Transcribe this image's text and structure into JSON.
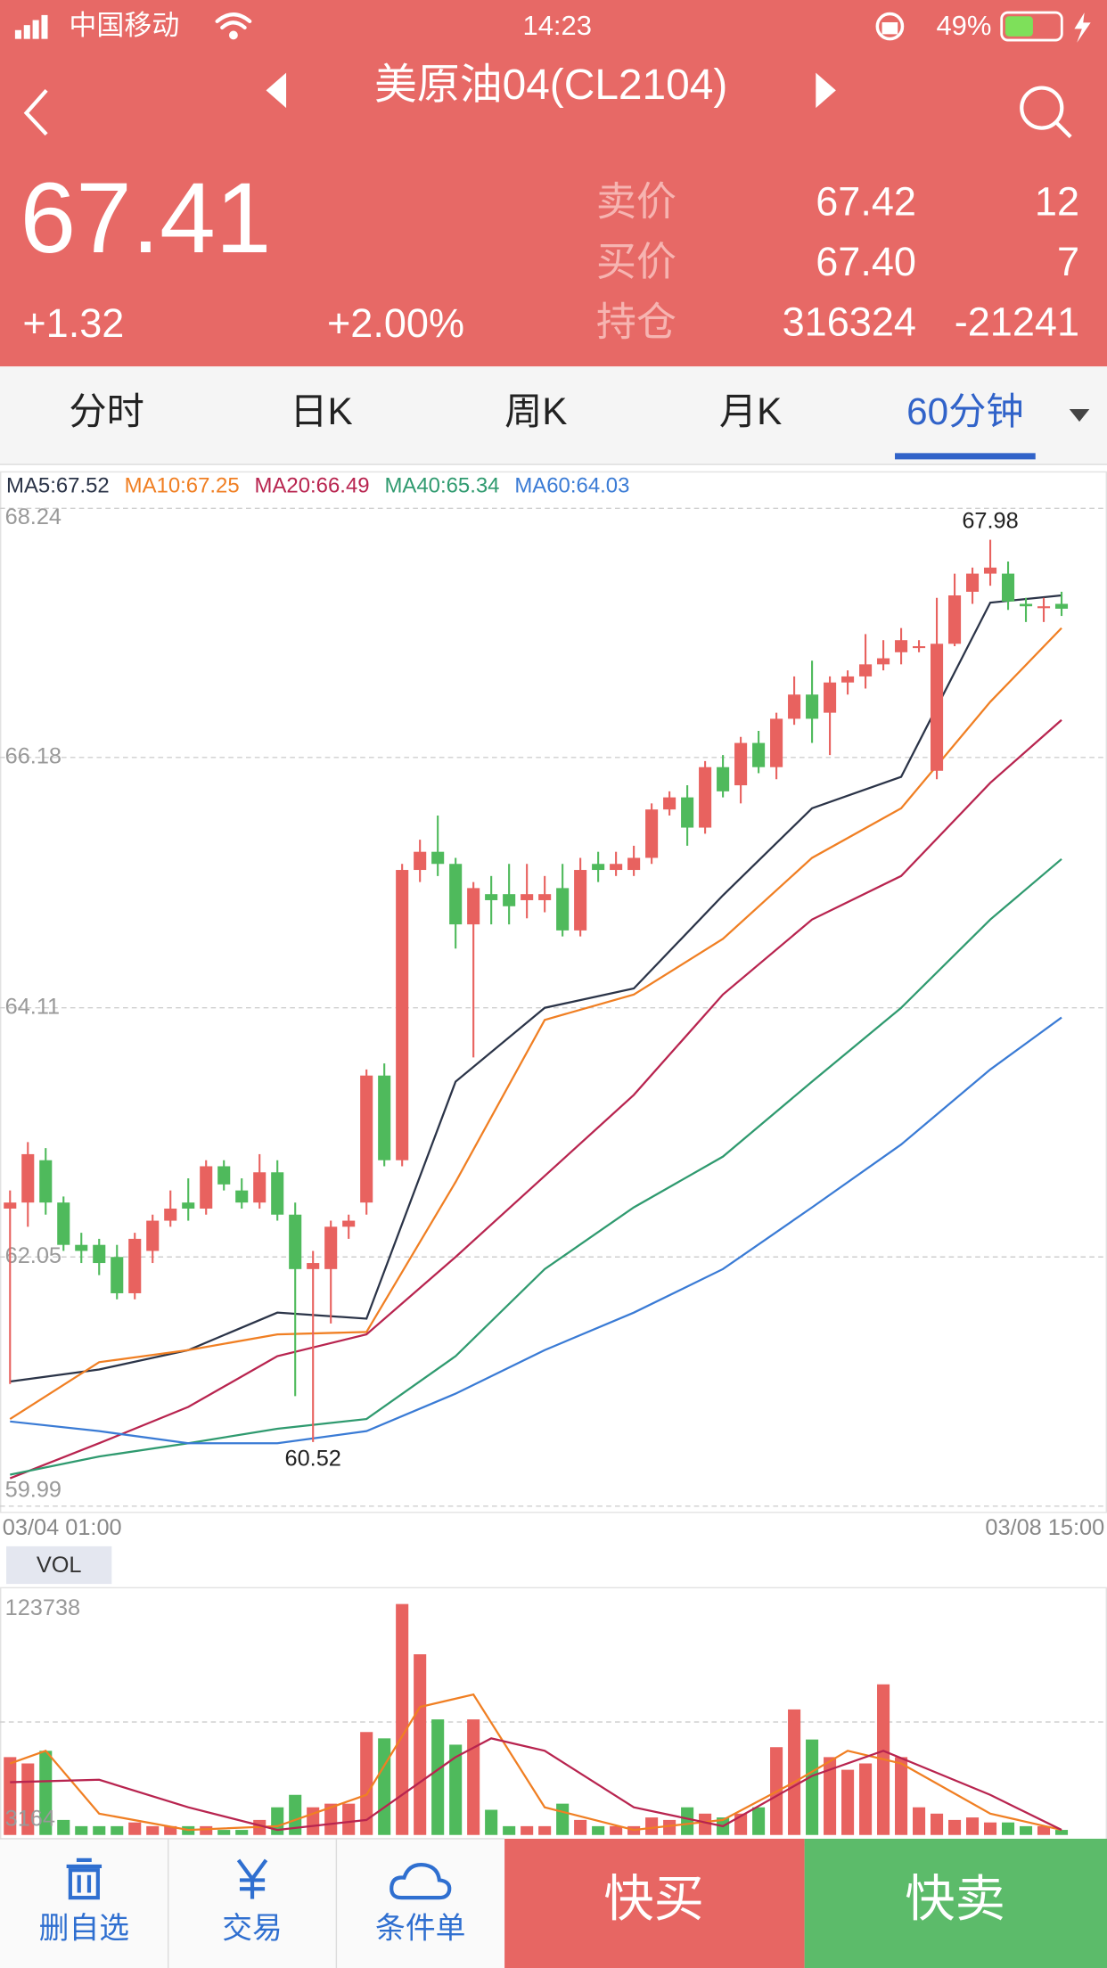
{
  "status_bar": {
    "carrier": "中国移动",
    "time": "14:23",
    "battery": "49%"
  },
  "header": {
    "title": "美原油04(CL2104)"
  },
  "quote": {
    "price": "67.41",
    "change": "+1.32",
    "change_pct": "+2.00%",
    "rows": [
      [
        "卖价",
        "67.42",
        "12"
      ],
      [
        "买价",
        "67.40",
        "7"
      ],
      [
        "持仓",
        "316324",
        "-21241"
      ]
    ]
  },
  "tabs": {
    "items": [
      "分时",
      "日K",
      "周K",
      "月K",
      "60分钟"
    ],
    "active": 4
  },
  "chart_data": [
    {
      "type": "candlestick",
      "open": [
        62.45,
        62.5,
        62.85,
        62.5,
        62.15,
        62.15,
        62.05,
        61.75,
        62.1,
        62.35,
        62.5,
        62.45,
        62.8,
        62.6,
        62.5,
        62.75,
        62.4,
        61.95,
        61.95,
        62.3,
        62.5,
        63.55,
        62.85,
        65.25,
        65.4,
        65.3,
        64.8,
        65.05,
        65.05,
        65.0,
        65.0,
        65.1,
        64.75,
        65.3,
        65.25,
        65.25,
        65.35,
        65.75,
        65.85,
        65.6,
        66.1,
        65.95,
        66.3,
        66.1,
        66.5,
        66.7,
        66.55,
        66.8,
        66.85,
        66.95,
        67.05,
        67.1,
        66.07,
        67.12,
        67.55,
        67.7,
        67.7,
        67.45,
        67.43,
        67.45
      ],
      "high": [
        62.6,
        63.0,
        62.95,
        62.55,
        62.25,
        62.2,
        62.15,
        62.25,
        62.4,
        62.6,
        62.7,
        62.85,
        62.85,
        62.7,
        62.9,
        62.85,
        62.5,
        62.1,
        62.35,
        62.4,
        63.6,
        63.65,
        65.3,
        65.5,
        65.7,
        65.35,
        65.15,
        65.2,
        65.3,
        65.3,
        65.2,
        65.3,
        65.35,
        65.4,
        65.4,
        65.45,
        65.8,
        65.9,
        65.95,
        66.15,
        66.2,
        66.35,
        66.4,
        66.55,
        66.85,
        66.98,
        66.85,
        66.9,
        67.2,
        67.15,
        67.25,
        67.15,
        67.5,
        67.7,
        67.75,
        67.98,
        67.8,
        67.5,
        67.5,
        67.55
      ],
      "low": [
        61.0,
        62.3,
        62.4,
        62.1,
        62.0,
        61.9,
        61.7,
        61.7,
        62.0,
        62.3,
        62.35,
        62.4,
        62.6,
        62.45,
        62.45,
        62.35,
        60.9,
        60.52,
        61.5,
        62.2,
        62.4,
        62.8,
        62.8,
        65.15,
        65.2,
        64.6,
        63.7,
        64.8,
        64.8,
        64.85,
        64.9,
        64.7,
        64.7,
        65.15,
        65.2,
        65.2,
        65.3,
        65.7,
        65.45,
        65.55,
        65.85,
        65.8,
        66.05,
        66.0,
        66.45,
        66.3,
        66.2,
        66.7,
        66.75,
        66.9,
        66.95,
        67.05,
        66.0,
        67.1,
        67.45,
        67.6,
        67.4,
        67.3,
        67.3,
        67.35
      ],
      "close": [
        62.5,
        62.9,
        62.5,
        62.15,
        62.1,
        62.0,
        61.75,
        62.2,
        62.35,
        62.45,
        62.45,
        62.8,
        62.65,
        62.5,
        62.75,
        62.4,
        61.95,
        62.0,
        62.3,
        62.35,
        63.55,
        62.85,
        65.25,
        65.4,
        65.3,
        64.8,
        65.1,
        65.0,
        64.95,
        65.05,
        65.05,
        64.75,
        65.25,
        65.25,
        65.3,
        65.35,
        65.75,
        65.85,
        65.6,
        66.1,
        65.9,
        66.3,
        66.1,
        66.5,
        66.7,
        66.5,
        66.8,
        66.85,
        66.95,
        67.0,
        67.15,
        67.1,
        67.12,
        67.52,
        67.7,
        67.75,
        67.47,
        67.43,
        67.43,
        67.41
      ],
      "up_color": "#e8625f",
      "down_color": "#4fba5c",
      "ylim": [
        59.99,
        68.24
      ],
      "yticks": [
        68.24,
        66.18,
        64.11,
        62.05,
        59.99
      ],
      "grid": true,
      "x_labels": [
        "03/04 01:00",
        "03/08 15:00"
      ],
      "series": [
        {
          "name": "MA5:67.52",
          "color": "#2b3448",
          "x": [
            0,
            5,
            10,
            15,
            20,
            25,
            30,
            35,
            40,
            45,
            50,
            55,
            59
          ],
          "values": [
            61.02,
            61.12,
            61.28,
            61.59,
            61.54,
            63.5,
            64.11,
            64.27,
            65.04,
            65.76,
            66.02,
            67.46,
            67.52
          ]
        },
        {
          "name": "MA10:67.25",
          "color": "#f07f23",
          "x": [
            0,
            5,
            10,
            15,
            20,
            25,
            30,
            35,
            40,
            45,
            50,
            55,
            59
          ],
          "values": [
            60.71,
            61.18,
            61.28,
            61.41,
            61.43,
            62.67,
            64.01,
            64.22,
            64.68,
            65.35,
            65.76,
            66.64,
            67.25
          ]
        },
        {
          "name": "MA20:66.49",
          "color": "#b8244f",
          "x": [
            0,
            5,
            10,
            15,
            20,
            25,
            30,
            35,
            40,
            45,
            50,
            55,
            59
          ],
          "values": [
            60.22,
            60.51,
            60.81,
            61.23,
            61.41,
            62.05,
            62.72,
            63.39,
            64.22,
            64.84,
            65.2,
            65.97,
            66.49
          ]
        },
        {
          "name": "MA40:65.34",
          "color": "#2f9a6f",
          "x": [
            0,
            5,
            10,
            15,
            20,
            25,
            30,
            35,
            40,
            45,
            50,
            55,
            59
          ],
          "values": [
            60.25,
            60.4,
            60.51,
            60.63,
            60.71,
            61.23,
            61.95,
            62.46,
            62.88,
            63.5,
            64.11,
            64.84,
            65.34
          ]
        },
        {
          "name": "MA60:64.03",
          "color": "#3a7bd5",
          "x": [
            0,
            5,
            10,
            15,
            20,
            25,
            30,
            35,
            40,
            45,
            50,
            55,
            59
          ],
          "values": [
            60.69,
            60.61,
            60.51,
            60.51,
            60.61,
            60.92,
            61.28,
            61.59,
            61.95,
            62.46,
            62.98,
            63.6,
            64.03
          ]
        }
      ]
    },
    {
      "type": "bar",
      "title": "VOL",
      "values": [
        43800,
        40500,
        47100,
        11000,
        7750,
        7750,
        7750,
        9700,
        7750,
        7750,
        7750,
        7750,
        5800,
        5800,
        11000,
        17600,
        24100,
        17600,
        19500,
        19500,
        56900,
        53600,
        123738,
        97500,
        63500,
        50300,
        63500,
        16300,
        7750,
        7750,
        7750,
        19500,
        11000,
        7750,
        7750,
        7750,
        12300,
        11000,
        17600,
        14300,
        12300,
        14300,
        17600,
        49000,
        68700,
        53000,
        43800,
        37200,
        40500,
        81800,
        43800,
        17600,
        14300,
        11000,
        12300,
        9700,
        9700,
        7750,
        7750,
        5800
      ],
      "ylim": [
        3164,
        123738
      ],
      "yticks": [
        123738,
        3164
      ],
      "series": [
        {
          "color": "#f07f23",
          "x": [
            0,
            2,
            5,
            10,
            15,
            20,
            23,
            26,
            30,
            35,
            40,
            44,
            47,
            50,
            55,
            59
          ],
          "values": [
            40500,
            47100,
            14300,
            5800,
            7750,
            24100,
            70000,
            76500,
            17600,
            5800,
            11000,
            30700,
            47100,
            40500,
            14300,
            5800
          ]
        },
        {
          "color": "#b8244f",
          "x": [
            0,
            5,
            10,
            15,
            20,
            25,
            27,
            30,
            35,
            40,
            45,
            49,
            55,
            59
          ],
          "values": [
            30700,
            32000,
            17600,
            5800,
            11000,
            43800,
            53600,
            47100,
            17600,
            7750,
            34000,
            47100,
            24100,
            5800
          ]
        }
      ]
    }
  ],
  "bottom_bar": {
    "buttons": [
      "删自选",
      "交易",
      "条件单"
    ],
    "buy": "快买",
    "sell": "快卖"
  }
}
